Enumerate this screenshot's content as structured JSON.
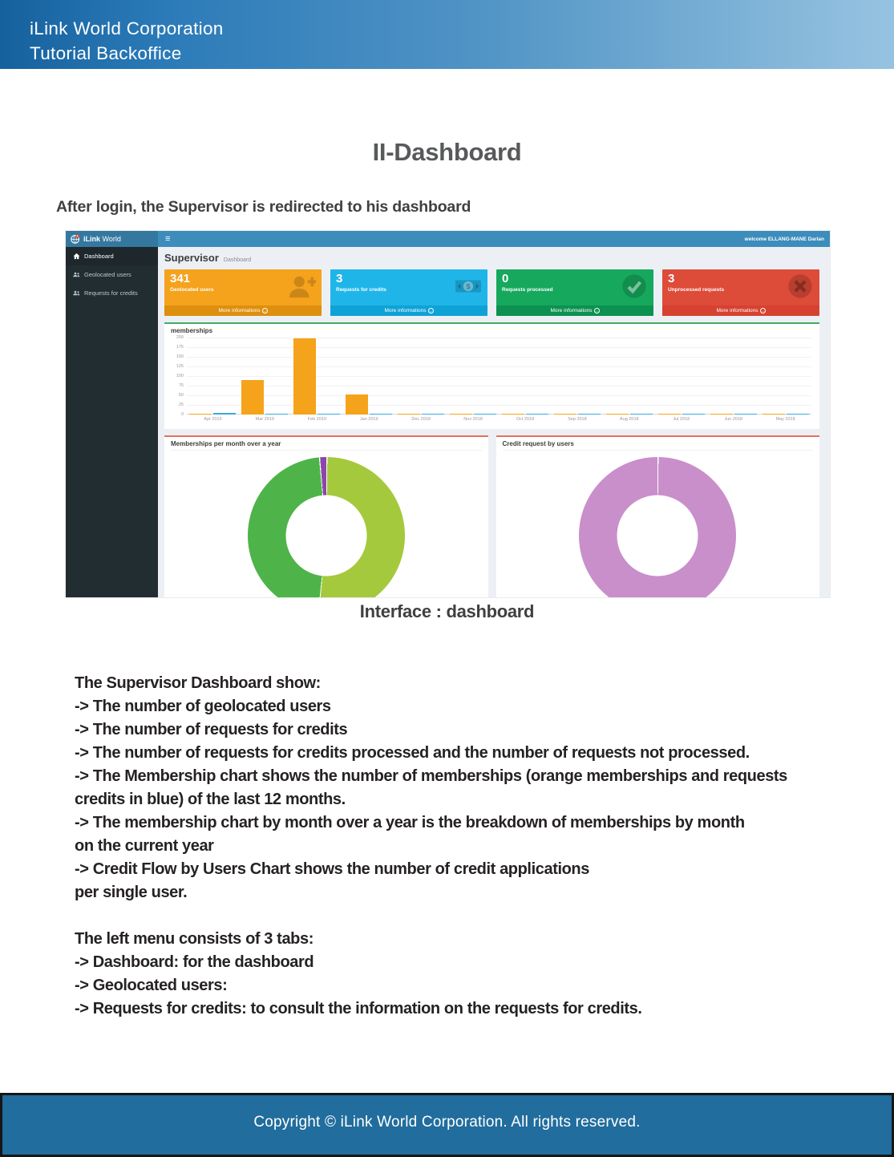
{
  "page": {
    "header": {
      "line1": "iLink World Corporation",
      "line2": "Tutorial Backoffice"
    },
    "title": "II-Dashboard",
    "subtitle": "After login, the Supervisor is redirected to his dashboard",
    "caption": "Interface : dashboard",
    "body_lines": [
      "The Supervisor Dashboard show:",
      "-> The number of geolocated users",
      "-> The number of requests for credits",
      "-> The number of requests for credits processed and the number of requests not processed.",
      "-> The Membership chart shows the number of memberships (orange memberships and requests",
      "credits in blue) of the last 12 months.",
      "-> The membership chart by month over a year is the breakdown of memberships by month",
      "on the current year",
      "-> Credit Flow by Users Chart shows the number of credit applications",
      "per single user.",
      "",
      "The left menu consists of 3 tabs:",
      "-> Dashboard: for the dashboard",
      "-> Geolocated users:",
      "-> Requests for credits: to consult the information on the requests for credits."
    ],
    "footer": "Copyright © iLink World Corporation. All rights reserved."
  },
  "dashboard": {
    "brand": {
      "bold": "iLink",
      "light": "World"
    },
    "topbar": {
      "welcome": "welcome ELLANG-MANE Darlan"
    },
    "icons": {
      "hamburger": "≡",
      "more_info_arrow": "→"
    },
    "sidebar": [
      {
        "label": "Dashboard",
        "icon": "home-icon",
        "active": true
      },
      {
        "label": "Geolocated users",
        "icon": "users-icon",
        "active": false
      },
      {
        "label": "Requests for credits",
        "icon": "users-icon",
        "active": false
      }
    ],
    "page_header": {
      "title": "Supervisor",
      "breadcrumb": "Dashboard"
    },
    "cards": [
      {
        "value": "341",
        "label": "Geolocated users",
        "link": "More informations",
        "icon": "person-add-icon",
        "color": "#f5a21d",
        "footer_color": "#dd8f0d"
      },
      {
        "value": "3",
        "label": "Requests for credits",
        "link": "More informations",
        "icon": "cash-icon",
        "color": "#1fb5e9",
        "footer_color": "#0ea2d6"
      },
      {
        "value": "0",
        "label": "Requests processed",
        "link": "More informations",
        "icon": "check-circle-icon",
        "color": "#16a85c",
        "footer_color": "#0c9150"
      },
      {
        "value": "3",
        "label": "Unprocessed requests",
        "link": "More informations",
        "icon": "close-circle-icon",
        "color": "#dd4b39",
        "footer_color": "#d64130"
      }
    ]
  },
  "chart_data": [
    {
      "type": "bar",
      "title": "memberships",
      "categories": [
        "Apr 2019",
        "Mar 2019",
        "Feb 2019",
        "Jan 2019",
        "Dec 2018",
        "Nov 2018",
        "Oct 2018",
        "Sep 2018",
        "Aug 2018",
        "Jul 2018",
        "Jun 2018",
        "May 2018"
      ],
      "series": [
        {
          "name": "memberships",
          "color": "#f5a31a",
          "values": [
            2,
            90,
            198,
            52,
            2,
            3,
            2,
            2,
            2,
            2,
            2,
            2
          ]
        },
        {
          "name": "credit-requests",
          "color": "#38a9e0",
          "values": [
            5,
            2,
            2,
            2,
            2,
            2,
            2,
            2,
            2,
            2,
            2,
            2
          ]
        }
      ],
      "ylim": [
        0,
        200
      ],
      "yticks": [
        200,
        175,
        150,
        125,
        100,
        75,
        50,
        25,
        0
      ],
      "grid": true,
      "legend": "none"
    },
    {
      "type": "pie",
      "donut": true,
      "title": "Memberships per month over a year",
      "slices": [
        {
          "label": "light-green-segment",
          "value": 51.5,
          "color": "#a5c93d"
        },
        {
          "label": "green-segment",
          "value": 47.0,
          "color": "#4eb449"
        },
        {
          "label": "purple-segment",
          "value": 1.5,
          "color": "#8e44ad"
        }
      ]
    },
    {
      "type": "pie",
      "donut": true,
      "title": "Credit request by users",
      "slices": [
        {
          "label": "orchid-segment",
          "value": 100,
          "color": "#c98fca"
        }
      ]
    }
  ]
}
